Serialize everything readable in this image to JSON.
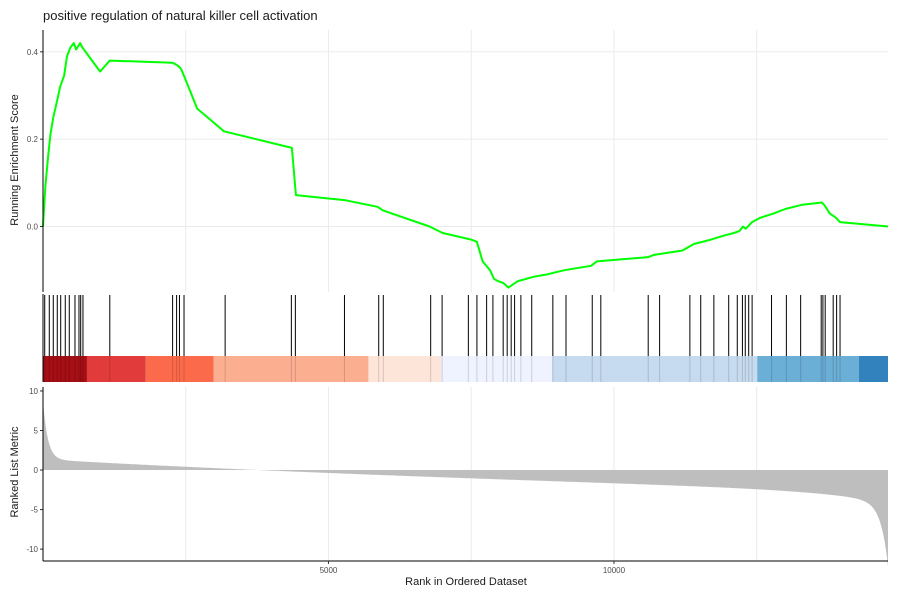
{
  "chart_data": {
    "type": "line",
    "title": "positive regulation of natural killer cell activation",
    "n_genes": 14800,
    "xlabel": "Rank in Ordered Dataset",
    "x_ticks": [
      5000,
      10000
    ],
    "x_tick_labels": [
      "5000",
      "10000"
    ],
    "grid": true,
    "panels": [
      {
        "name": "running-score",
        "ylabel": "Running Enrichment Score",
        "ylim": [
          -0.15,
          0.45
        ],
        "y_ticks": [
          0.0,
          0.2,
          0.4
        ],
        "y_tick_labels": [
          "0.0",
          "0.2",
          "0.4"
        ],
        "line_color": "#00ff00",
        "x": [
          0,
          40,
          90,
          130,
          180,
          250,
          300,
          370,
          420,
          480,
          540,
          580,
          650,
          690,
          1000,
          1170,
          2270,
          2340,
          2390,
          2420,
          2470,
          2700,
          3170,
          4360,
          4430,
          5300,
          5860,
          5950,
          6770,
          7000,
          7500,
          7600,
          7700,
          7830,
          7900,
          7970,
          8070,
          8150,
          8320,
          8600,
          8820,
          9130,
          9600,
          9700,
          10600,
          10700,
          11200,
          11400,
          11700,
          11950,
          12100,
          12200,
          12260,
          12310,
          12420,
          12560,
          12800,
          13000,
          13300,
          13640,
          13680,
          13780,
          13890,
          13960,
          14800
        ],
        "y": [
          0.0,
          0.09,
          0.16,
          0.21,
          0.25,
          0.29,
          0.32,
          0.345,
          0.39,
          0.41,
          0.42,
          0.405,
          0.42,
          0.41,
          0.355,
          0.38,
          0.375,
          0.37,
          0.365,
          0.36,
          0.345,
          0.27,
          0.218,
          0.18,
          0.072,
          0.06,
          0.045,
          0.037,
          0.0,
          -0.015,
          -0.03,
          -0.035,
          -0.08,
          -0.1,
          -0.12,
          -0.125,
          -0.13,
          -0.14,
          -0.125,
          -0.115,
          -0.11,
          -0.1,
          -0.09,
          -0.08,
          -0.07,
          -0.065,
          -0.055,
          -0.04,
          -0.03,
          -0.02,
          -0.015,
          -0.01,
          0.0,
          -0.005,
          0.01,
          0.02,
          0.03,
          0.04,
          0.05,
          0.055,
          0.05,
          0.03,
          0.02,
          0.01,
          0.0
        ]
      },
      {
        "name": "gene-hits",
        "hits": [
          30,
          110,
          180,
          250,
          310,
          390,
          460,
          560,
          630,
          660,
          700,
          1170,
          2270,
          2340,
          2390,
          2470,
          3190,
          4350,
          4420,
          5280,
          5880,
          5960,
          6790,
          6990,
          7450,
          7600,
          7770,
          7880,
          8060,
          8130,
          8200,
          8260,
          8370,
          8560,
          8930,
          9160,
          9620,
          9770,
          10600,
          10800,
          11330,
          11520,
          11750,
          12010,
          12160,
          12250,
          12300,
          12360,
          12420,
          12760,
          13020,
          13270,
          13630,
          13660,
          13700,
          13840,
          13900,
          13960
        ]
      },
      {
        "name": "ranked-metric",
        "ylabel": "Ranked List Metric",
        "ylim": [
          -11.5,
          10.5
        ],
        "y_ticks": [
          10,
          5,
          0,
          -5,
          -10
        ],
        "y_tick_labels": [
          "10",
          "5",
          "0",
          "-5",
          "-10"
        ],
        "fill_color": "#bebebe"
      }
    ],
    "color_bands": [
      {
        "start": 0,
        "end": 770,
        "color": "#a50f15"
      },
      {
        "start": 770,
        "end": 1800,
        "color": "#e23b3b"
      },
      {
        "start": 1800,
        "end": 2990,
        "color": "#fb6a4a"
      },
      {
        "start": 2990,
        "end": 5700,
        "color": "#fcae91"
      },
      {
        "start": 5700,
        "end": 6970,
        "color": "#fee5d9"
      },
      {
        "start": 6970,
        "end": 8920,
        "color": "#eff3ff"
      },
      {
        "start": 8920,
        "end": 12510,
        "color": "#c6dbef"
      },
      {
        "start": 12510,
        "end": 14290,
        "color": "#6baed6"
      },
      {
        "start": 14290,
        "end": 14800,
        "color": "#3182bd"
      }
    ]
  }
}
